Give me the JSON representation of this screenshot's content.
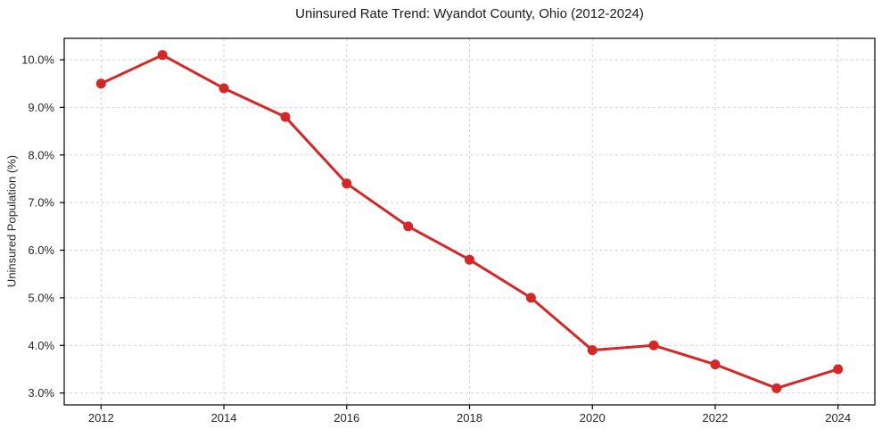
{
  "chart_data": {
    "type": "line",
    "title": "Uninsured Rate Trend: Wyandot County, Ohio (2012-2024)",
    "xlabel": "",
    "ylabel": "Uninsured Population (%)",
    "x": [
      2012,
      2013,
      2014,
      2015,
      2016,
      2017,
      2018,
      2019,
      2020,
      2021,
      2022,
      2023,
      2024
    ],
    "values": [
      9.5,
      10.1,
      9.4,
      8.8,
      7.4,
      6.5,
      5.8,
      5.0,
      3.9,
      4.0,
      3.6,
      3.1,
      3.5
    ],
    "value_unit": "%",
    "x_ticks": [
      2012,
      2014,
      2016,
      2018,
      2020,
      2022,
      2024
    ],
    "x_tick_labels": [
      "2012",
      "2014",
      "2016",
      "2018",
      "2020",
      "2022",
      "2024"
    ],
    "y_ticks": [
      3,
      4,
      5,
      6,
      7,
      8,
      9,
      10
    ],
    "y_tick_labels": [
      "3.0%",
      "4.0%",
      "5.0%",
      "6.0%",
      "7.0%",
      "8.0%",
      "9.0%",
      "10.0%"
    ],
    "xlim": [
      2011.4,
      2024.6
    ],
    "ylim": [
      2.75,
      10.45
    ],
    "grid": true,
    "grid_style": "dashed",
    "legend": "none",
    "marker": "circle",
    "colors": {
      "line": "#d62728",
      "grid": "#d3d3d3",
      "axis": "#000000",
      "text": "#262626"
    }
  }
}
